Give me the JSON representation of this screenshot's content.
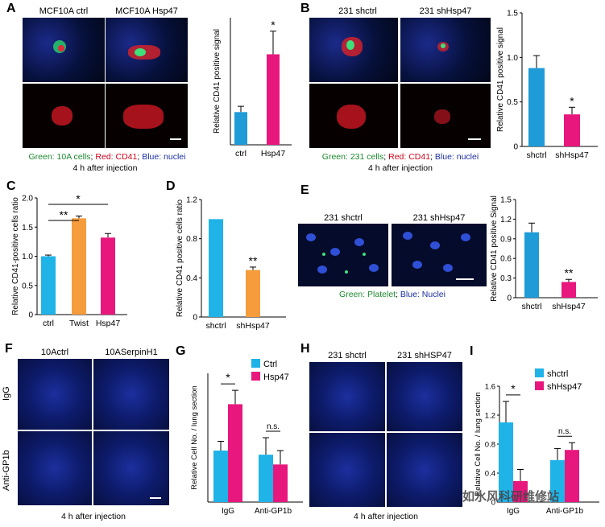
{
  "panels": {
    "A": {
      "letter": "A",
      "img_titles": [
        "MCF10A ctrl",
        "MCF10A Hsp47"
      ],
      "caption_green": "Green: 10A cells",
      "caption_red": "Red: CD41",
      "caption_blue": "Blue: nuclei",
      "caption_sep": "; ",
      "time": "4 h after injection"
    },
    "B": {
      "letter": "B",
      "img_titles": [
        "231 shctrl",
        "231 shHsp47"
      ],
      "caption_green": "Green: 231 cells",
      "caption_red": "Red: CD41",
      "caption_blue": "Blue: nuclei",
      "caption_sep": "; ",
      "time": "4 h after injection"
    },
    "C": {
      "letter": "C"
    },
    "D": {
      "letter": "D"
    },
    "E": {
      "letter": "E",
      "img_titles": [
        "231 shctrl",
        "231 shHsp47"
      ],
      "caption_green": "Green: Platelet",
      "caption_blue": "Blue: Nuclei",
      "caption_sep": "; "
    },
    "F": {
      "letter": "F",
      "img_titles": [
        "10Actrl",
        "10ASerpinH1"
      ],
      "row_labels": [
        "IgG",
        "Anti-GP1b"
      ],
      "time": "4 h after injection"
    },
    "G": {
      "letter": "G"
    },
    "H": {
      "letter": "H",
      "img_titles": [
        "231 shctrl",
        "231 shHSP47"
      ],
      "time": "4 h after injection"
    },
    "I": {
      "letter": "I"
    }
  },
  "watermark": "如水风科研维修站",
  "chart_data": [
    {
      "id": "A",
      "type": "bar",
      "categories": [
        "ctrl",
        "Hsp47"
      ],
      "values": [
        0.85,
        2.35
      ],
      "errors": [
        0.15,
        0.6
      ],
      "colors": [
        "#1f9bd7",
        "#e8177d"
      ],
      "significance": [
        "",
        "*"
      ],
      "ylabel": "Relative CD41 positive signal",
      "ylim": [
        0,
        3.3
      ]
    },
    {
      "id": "B",
      "type": "bar",
      "categories": [
        "shctrl",
        "shHsp47"
      ],
      "values": [
        0.88,
        0.36
      ],
      "errors": [
        0.14,
        0.08
      ],
      "colors": [
        "#1f9bd7",
        "#e8177d"
      ],
      "significance": [
        "",
        "*"
      ],
      "ylabel": "Relative CD41 positive signal",
      "ylim": [
        0,
        1.5
      ],
      "yticks": [
        "0",
        "0.5",
        "1.0",
        "1.5"
      ]
    },
    {
      "id": "C",
      "type": "bar",
      "categories": [
        "ctrl",
        "Twist",
        "Hsp47"
      ],
      "values": [
        1.0,
        1.65,
        1.32
      ],
      "errors": [
        0.02,
        0.04,
        0.07
      ],
      "colors": [
        "#1fb3e8",
        "#f59c3c",
        "#e8177d"
      ],
      "significance_bars": [
        {
          "from": 0,
          "to": 1,
          "label": "**"
        },
        {
          "from": 0,
          "to": 2,
          "label": "*"
        }
      ],
      "ylabel": "Relative CD41-positive cells ratio",
      "ylim": [
        0,
        2.0
      ],
      "yticks": [
        "0",
        "0.5",
        "1.0",
        "1.5",
        "2.0"
      ]
    },
    {
      "id": "D",
      "type": "bar",
      "categories": [
        "shctrl",
        "shHsp47"
      ],
      "values": [
        1.0,
        0.48
      ],
      "errors": [
        0.0,
        0.03
      ],
      "colors": [
        "#1fb3e8",
        "#f59c3c"
      ],
      "significance": [
        "",
        "**"
      ],
      "ylabel": "Relative CD41 positive cells ratio",
      "ylim": [
        0,
        1.2
      ],
      "yticks": [
        "0",
        "0.4",
        "0.8",
        "1.2"
      ]
    },
    {
      "id": "E",
      "type": "bar",
      "categories": [
        "shctrl",
        "shHsp47"
      ],
      "values": [
        1.0,
        0.24
      ],
      "errors": [
        0.14,
        0.04
      ],
      "colors": [
        "#1f9bd7",
        "#e8177d"
      ],
      "significance": [
        "",
        "**"
      ],
      "ylabel": "Relative CD41 positive Signal",
      "ylim": [
        0,
        1.5
      ],
      "yticks": [
        "0",
        "0.3",
        "0.6",
        "0.9",
        "1.2",
        "1.5"
      ]
    },
    {
      "id": "G",
      "type": "bar",
      "categories": [
        "IgG",
        "Anti-GP1b"
      ],
      "series": [
        {
          "name": "Ctrl",
          "values": [
            1.0,
            0.92
          ],
          "errors": [
            0.18,
            0.33
          ],
          "color": "#1fb3e8"
        },
        {
          "name": "Hsp47",
          "values": [
            1.9,
            0.73
          ],
          "errors": [
            0.27,
            0.27
          ],
          "color": "#e8177d"
        }
      ],
      "significance_bars": [
        {
          "category": 0,
          "label": "*"
        },
        {
          "category": 1,
          "label": "n.s."
        }
      ],
      "ylabel": "Relative Cell No. / lung section",
      "ylim": [
        0,
        2.5
      ]
    },
    {
      "id": "I",
      "type": "bar",
      "categories": [
        "IgG",
        "Anti-GP1b"
      ],
      "series": [
        {
          "name": "shctrl",
          "values": [
            1.1,
            0.58
          ],
          "errors": [
            0.29,
            0.16
          ],
          "color": "#1fb3e8"
        },
        {
          "name": "shHsp47",
          "values": [
            0.29,
            0.72
          ],
          "errors": [
            0.16,
            0.1
          ],
          "color": "#e8177d"
        }
      ],
      "significance_bars": [
        {
          "category": 0,
          "label": "*"
        },
        {
          "category": 1,
          "label": "n.s."
        }
      ],
      "ylabel": "Relative Cell No. / lung section",
      "ylim": [
        0,
        1.6
      ],
      "yticks": [
        "0",
        "0.4",
        "0.8",
        "1.2",
        "1.6"
      ]
    }
  ]
}
